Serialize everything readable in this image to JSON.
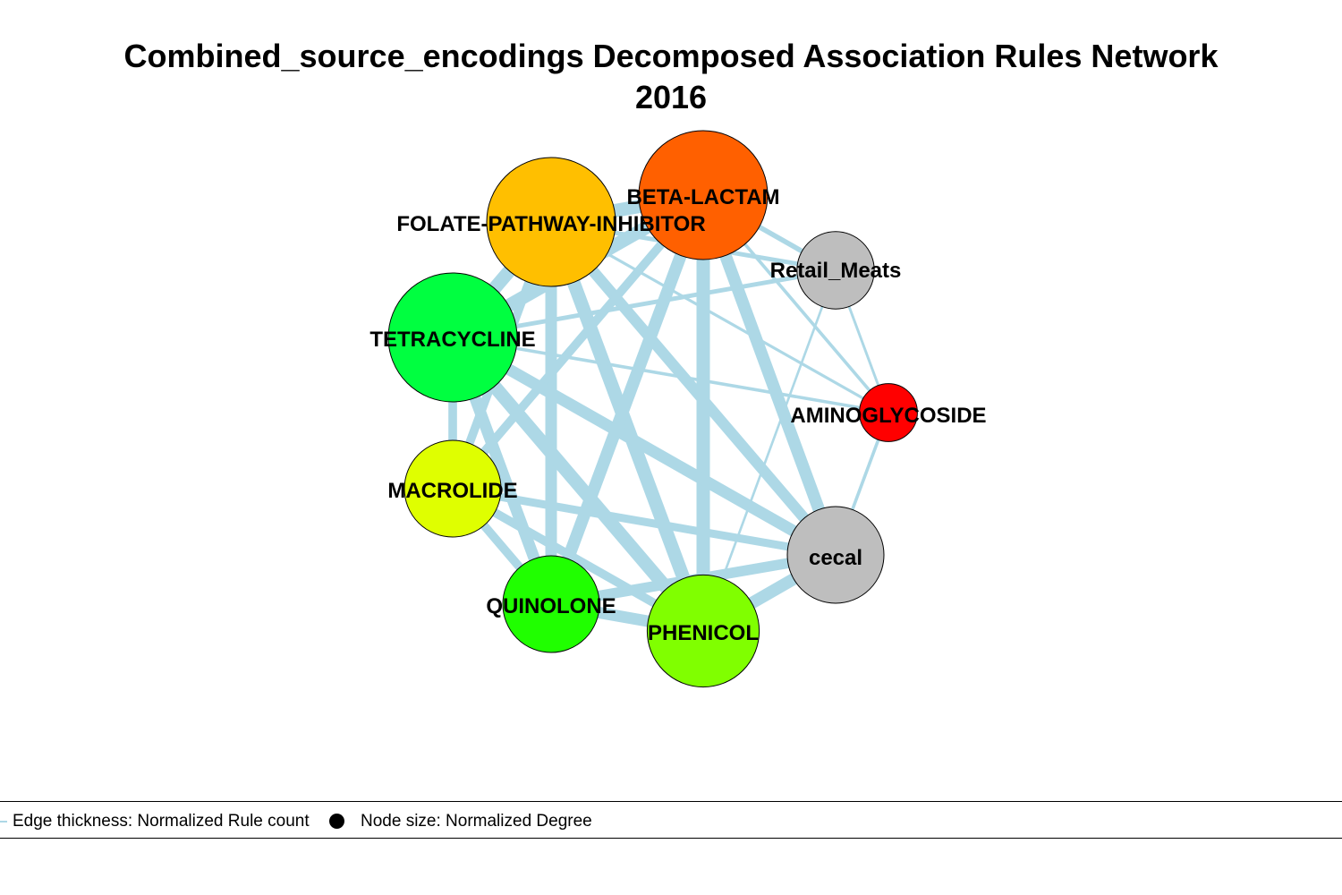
{
  "title": {
    "line1": "Combined_source_encodings Decomposed Association Rules Network",
    "line2": "2016"
  },
  "colors": {
    "edge": "#add8e6",
    "node_border": "#000000",
    "label": "#000000"
  },
  "nodes": [
    {
      "id": "BETA-LACTAM",
      "label": "BETA-LACTAM",
      "color": "#ff6000",
      "size": 1.0
    },
    {
      "id": "FOLATE-PATHWAY-INHIBITOR",
      "label": "FOLATE-PATHWAY-INHIBITOR",
      "color": "#ffbf00",
      "size": 1.0
    },
    {
      "id": "Retail_Meats",
      "label": "Retail_Meats",
      "color": "#bebebe",
      "size": 0.6
    },
    {
      "id": "TETRACYCLINE",
      "label": "TETRACYCLINE",
      "color": "#00ff40",
      "size": 1.0
    },
    {
      "id": "AMINOGLYCOSIDE",
      "label": "AMINOGLYCOSIDE",
      "color": "#ff0000",
      "size": 0.45
    },
    {
      "id": "MACROLIDE",
      "label": "MACROLIDE",
      "color": "#dfff00",
      "size": 0.75
    },
    {
      "id": "cecal",
      "label": "cecal",
      "color": "#bebebe",
      "size": 0.75
    },
    {
      "id": "QUINOLONE",
      "label": "QUINOLONE",
      "color": "#20ff00",
      "size": 0.75
    },
    {
      "id": "PHENICOL",
      "label": "PHENICOL",
      "color": "#80ff00",
      "size": 0.87
    }
  ],
  "edges": [
    {
      "from": "FOLATE-PATHWAY-INHIBITOR",
      "to": "BETA-LACTAM",
      "weight": 1.0
    },
    {
      "from": "FOLATE-PATHWAY-INHIBITOR",
      "to": "TETRACYCLINE",
      "weight": 1.0
    },
    {
      "from": "FOLATE-PATHWAY-INHIBITOR",
      "to": "MACROLIDE",
      "weight": 0.6
    },
    {
      "from": "FOLATE-PATHWAY-INHIBITOR",
      "to": "QUINOLONE",
      "weight": 0.85
    },
    {
      "from": "FOLATE-PATHWAY-INHIBITOR",
      "to": "PHENICOL",
      "weight": 1.0
    },
    {
      "from": "FOLATE-PATHWAY-INHIBITOR",
      "to": "cecal",
      "weight": 0.8
    },
    {
      "from": "FOLATE-PATHWAY-INHIBITOR",
      "to": "Retail_Meats",
      "weight": 0.25
    },
    {
      "from": "FOLATE-PATHWAY-INHIBITOR",
      "to": "AMINOGLYCOSIDE",
      "weight": 0.12
    },
    {
      "from": "BETA-LACTAM",
      "to": "TETRACYCLINE",
      "weight": 1.0
    },
    {
      "from": "BETA-LACTAM",
      "to": "MACROLIDE",
      "weight": 0.6
    },
    {
      "from": "BETA-LACTAM",
      "to": "QUINOLONE",
      "weight": 0.9
    },
    {
      "from": "BETA-LACTAM",
      "to": "PHENICOL",
      "weight": 1.0
    },
    {
      "from": "BETA-LACTAM",
      "to": "cecal",
      "weight": 0.9
    },
    {
      "from": "BETA-LACTAM",
      "to": "Retail_Meats",
      "weight": 0.3
    },
    {
      "from": "BETA-LACTAM",
      "to": "AMINOGLYCOSIDE",
      "weight": 0.15
    },
    {
      "from": "TETRACYCLINE",
      "to": "MACROLIDE",
      "weight": 0.6
    },
    {
      "from": "TETRACYCLINE",
      "to": "QUINOLONE",
      "weight": 0.85
    },
    {
      "from": "TETRACYCLINE",
      "to": "PHENICOL",
      "weight": 1.0
    },
    {
      "from": "TETRACYCLINE",
      "to": "cecal",
      "weight": 0.85
    },
    {
      "from": "TETRACYCLINE",
      "to": "Retail_Meats",
      "weight": 0.25
    },
    {
      "from": "TETRACYCLINE",
      "to": "AMINOGLYCOSIDE",
      "weight": 0.15
    },
    {
      "from": "MACROLIDE",
      "to": "QUINOLONE",
      "weight": 0.6
    },
    {
      "from": "MACROLIDE",
      "to": "PHENICOL",
      "weight": 0.6
    },
    {
      "from": "MACROLIDE",
      "to": "cecal",
      "weight": 0.55
    },
    {
      "from": "QUINOLONE",
      "to": "PHENICOL",
      "weight": 0.85
    },
    {
      "from": "QUINOLONE",
      "to": "cecal",
      "weight": 0.75
    },
    {
      "from": "PHENICOL",
      "to": "cecal",
      "weight": 0.9
    },
    {
      "from": "Retail_Meats",
      "to": "AMINOGLYCOSIDE",
      "weight": 0.1
    },
    {
      "from": "Retail_Meats",
      "to": "PHENICOL",
      "weight": 0.08
    },
    {
      "from": "AMINOGLYCOSIDE",
      "to": "cecal",
      "weight": 0.15
    }
  ],
  "legend": {
    "edge_text": "Edge thickness: Normalized Rule count",
    "node_text": "Node size: Normalized Degree"
  }
}
